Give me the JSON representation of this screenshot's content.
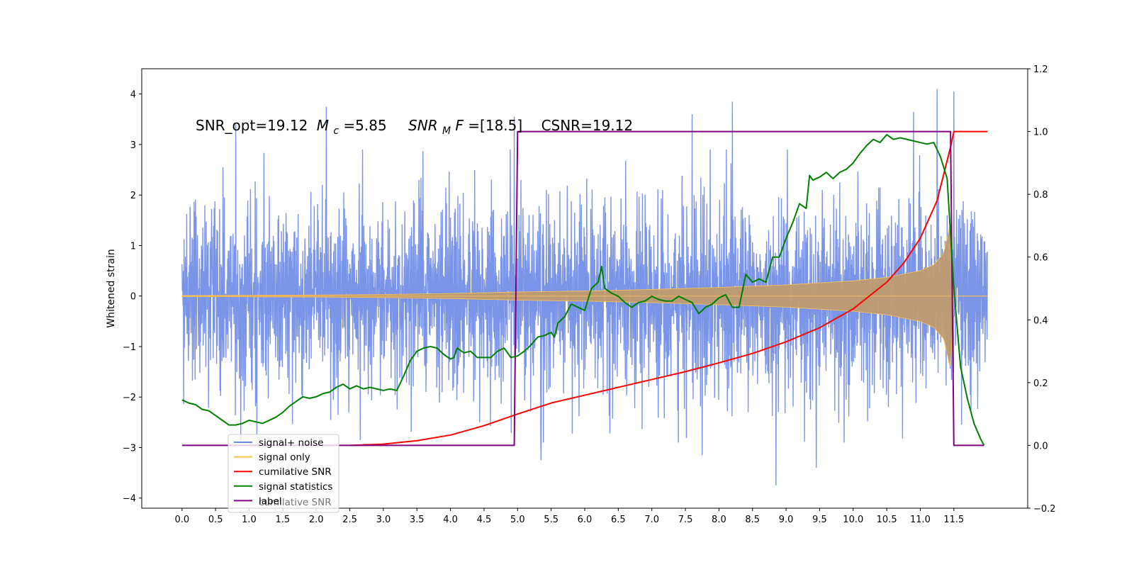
{
  "chart_data": {
    "type": "line",
    "title": "",
    "ylabel": "Whitened strain",
    "xlim": [
      -0.6,
      12.6
    ],
    "ylim": [
      -4.2,
      4.5
    ],
    "y2lim": [
      -0.2,
      1.2
    ],
    "x_ticks": [
      "0.0",
      "0.5",
      "1.0",
      "1.5",
      "2.0",
      "2.5",
      "3.0",
      "3.5",
      "4.0",
      "4.5",
      "5.0",
      "5.5",
      "6.0",
      "6.5",
      "7.0",
      "7.5",
      "8.0",
      "8.5",
      "9.0",
      "9.5",
      "10.0",
      "10.5",
      "11.0",
      "11.5"
    ],
    "y_ticks": [
      "−4",
      "−3",
      "−2",
      "−1",
      "0",
      "1",
      "2",
      "3",
      "4"
    ],
    "y2_ticks": [
      "−0.2",
      "0.0",
      "0.2",
      "0.4",
      "0.6",
      "0.8",
      "1.0",
      "1.2"
    ],
    "annotation": {
      "snr_opt": "SNR_opt=19.12",
      "mc_symbol": "M",
      "mc_sub": "c",
      "mc_value": "=5.85",
      "snrmf_symbol": "SNR",
      "snrmf_sub": "M",
      "snrmf_F": "F",
      "snrmf_value": "=[18.5]",
      "csnr": "CSNR=19.12"
    },
    "legend": {
      "position": "lower left",
      "entries": [
        {
          "label": "signal+ noise",
          "color": "#6b88e4"
        },
        {
          "label": "signal only",
          "color": "#ffc04d"
        },
        {
          "label": "cumilative SNR",
          "color": "#ff0000"
        },
        {
          "label": "signal statistics",
          "color": "#008000"
        },
        {
          "label": "label",
          "color": "#800080"
        }
      ],
      "hidden_text": "cumilative SNR"
    },
    "series": [
      {
        "name": "signal+ noise",
        "axis": "left",
        "kind": "noise",
        "color": "#6b88e4",
        "x_range": [
          0.0,
          12.0
        ],
        "typical_amplitude": 2.0,
        "peak_values": [
          {
            "x": 0.8,
            "y": 3.4
          },
          {
            "x": 2.15,
            "y": 3.75
          },
          {
            "x": 4.95,
            "y": 3.55
          },
          {
            "x": 7.6,
            "y": 3.6
          },
          {
            "x": 8.2,
            "y": 3.85
          },
          {
            "x": 10.9,
            "y": 3.65
          },
          {
            "x": 11.25,
            "y": 4.1
          },
          {
            "x": 11.5,
            "y": 4.05
          },
          {
            "x": 5.35,
            "y": -3.25
          },
          {
            "x": 7.75,
            "y": -3.15
          },
          {
            "x": 8.85,
            "y": -3.75
          },
          {
            "x": 9.45,
            "y": -3.4
          }
        ]
      },
      {
        "name": "signal only",
        "axis": "left",
        "kind": "chirp",
        "color": "#ffc04d",
        "x": [
          0.0,
          1.0,
          2.0,
          3.0,
          4.0,
          5.0,
          6.0,
          7.0,
          8.0,
          9.0,
          10.0,
          10.5,
          11.0,
          11.2,
          11.35,
          11.45,
          11.5,
          12.0
        ],
        "envelope": [
          0.01,
          0.015,
          0.02,
          0.03,
          0.05,
          0.08,
          0.1,
          0.13,
          0.17,
          0.22,
          0.3,
          0.37,
          0.5,
          0.62,
          0.85,
          1.45,
          0.0,
          0.0
        ]
      },
      {
        "name": "cumilative SNR",
        "axis": "right",
        "color": "#ff0000",
        "x": [
          2.5,
          3.0,
          3.5,
          4.0,
          4.5,
          5.0,
          5.5,
          6.0,
          6.5,
          7.0,
          7.5,
          8.0,
          8.5,
          9.0,
          9.5,
          10.0,
          10.5,
          10.75,
          11.0,
          11.25,
          11.45,
          11.5,
          12.0
        ],
        "values": [
          0.0,
          0.004,
          0.015,
          0.033,
          0.063,
          0.1,
          0.135,
          0.16,
          0.185,
          0.21,
          0.235,
          0.263,
          0.293,
          0.33,
          0.375,
          0.435,
          0.52,
          0.58,
          0.66,
          0.78,
          0.95,
          1.0,
          1.0
        ]
      },
      {
        "name": "signal statistics",
        "axis": "right",
        "color": "#008000",
        "x": [
          0.0,
          0.1,
          0.2,
          0.3,
          0.4,
          0.5,
          0.6,
          0.7,
          0.8,
          0.9,
          1.0,
          1.1,
          1.2,
          1.3,
          1.4,
          1.5,
          1.6,
          1.7,
          1.8,
          1.9,
          2.0,
          2.1,
          2.2,
          2.3,
          2.4,
          2.5,
          2.6,
          2.7,
          2.8,
          2.9,
          3.0,
          3.1,
          3.2,
          3.3,
          3.4,
          3.5,
          3.6,
          3.7,
          3.8,
          3.9,
          4.0,
          4.05,
          4.1,
          4.2,
          4.3,
          4.4,
          4.5,
          4.6,
          4.7,
          4.8,
          4.9,
          5.0,
          5.1,
          5.2,
          5.3,
          5.4,
          5.5,
          5.55,
          5.6,
          5.7,
          5.8,
          5.9,
          6.0,
          6.1,
          6.2,
          6.25,
          6.3,
          6.4,
          6.5,
          6.6,
          6.7,
          6.8,
          6.9,
          7.0,
          7.1,
          7.2,
          7.3,
          7.4,
          7.5,
          7.6,
          7.7,
          7.8,
          7.9,
          8.0,
          8.1,
          8.2,
          8.3,
          8.4,
          8.5,
          8.6,
          8.7,
          8.8,
          8.9,
          9.0,
          9.1,
          9.2,
          9.3,
          9.35,
          9.4,
          9.5,
          9.6,
          9.7,
          9.8,
          9.9,
          10.0,
          10.1,
          10.2,
          10.3,
          10.4,
          10.5,
          10.6,
          10.7,
          10.8,
          10.9,
          11.0,
          11.1,
          11.2,
          11.3,
          11.4,
          11.5,
          11.6,
          11.7,
          11.8,
          11.9,
          11.95
        ],
        "values": [
          0.145,
          0.135,
          0.13,
          0.115,
          0.11,
          0.095,
          0.08,
          0.065,
          0.065,
          0.07,
          0.08,
          0.075,
          0.07,
          0.08,
          0.09,
          0.105,
          0.125,
          0.14,
          0.155,
          0.15,
          0.155,
          0.165,
          0.17,
          0.185,
          0.195,
          0.18,
          0.19,
          0.18,
          0.185,
          0.18,
          0.175,
          0.18,
          0.175,
          0.22,
          0.27,
          0.3,
          0.31,
          0.315,
          0.31,
          0.29,
          0.275,
          0.28,
          0.31,
          0.295,
          0.3,
          0.28,
          0.28,
          0.28,
          0.3,
          0.31,
          0.28,
          0.285,
          0.3,
          0.32,
          0.345,
          0.35,
          0.36,
          0.345,
          0.39,
          0.41,
          0.45,
          0.44,
          0.43,
          0.5,
          0.52,
          0.57,
          0.5,
          0.485,
          0.475,
          0.455,
          0.44,
          0.455,
          0.46,
          0.475,
          0.465,
          0.46,
          0.46,
          0.475,
          0.465,
          0.455,
          0.42,
          0.44,
          0.45,
          0.47,
          0.48,
          0.44,
          0.44,
          0.545,
          0.52,
          0.53,
          0.52,
          0.6,
          0.6,
          0.66,
          0.71,
          0.77,
          0.755,
          0.86,
          0.845,
          0.855,
          0.87,
          0.85,
          0.87,
          0.88,
          0.9,
          0.93,
          0.955,
          0.975,
          0.965,
          0.99,
          0.975,
          0.98,
          0.975,
          0.97,
          0.965,
          0.96,
          0.965,
          0.92,
          0.85,
          0.5,
          0.25,
          0.15,
          0.07,
          0.02,
          0.0
        ]
      },
      {
        "name": "label",
        "axis": "right",
        "color": "#800080",
        "x": [
          0.0,
          4.95,
          5.0,
          11.45,
          11.5,
          11.95
        ],
        "values": [
          0.0,
          0.0,
          1.0,
          1.0,
          0.0,
          0.0
        ]
      }
    ]
  }
}
